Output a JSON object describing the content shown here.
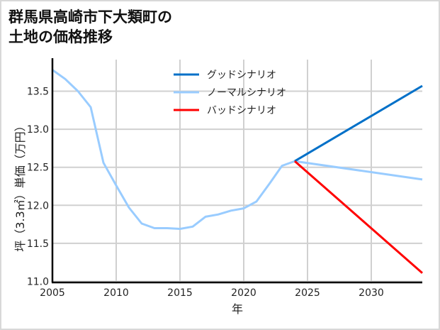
{
  "chart_data": {
    "type": "line",
    "title": "群馬県高崎市下大類町の土地の価格推移",
    "title_lines": [
      "群馬県高崎市下大類町の",
      "土地の価格推移"
    ],
    "xlabel": "年",
    "ylabel": "坪（3.3㎡）単価（万円）",
    "xlim": [
      2005,
      2034
    ],
    "ylim": [
      11.0,
      13.8
    ],
    "x_ticks": [
      2005,
      2010,
      2015,
      2020,
      2025,
      2030
    ],
    "y_ticks": [
      11.0,
      11.5,
      12.0,
      12.5,
      13.0,
      13.5
    ],
    "y_tick_labels": [
      "11.0",
      "11.5",
      "12.0",
      "12.5",
      "13.0",
      "13.5"
    ],
    "grid": true,
    "legend_position": "upper center",
    "series": [
      {
        "name": "グッドシナリオ",
        "color": "#0070c8",
        "x": [
          2024,
          2034
        ],
        "values": [
          12.58,
          13.57
        ]
      },
      {
        "name": "ノーマルシナリオ",
        "color": "#99ccff",
        "x": [
          2005,
          2006,
          2007,
          2008,
          2009,
          2010,
          2011,
          2012,
          2013,
          2014,
          2015,
          2016,
          2017,
          2018,
          2019,
          2020,
          2021,
          2022,
          2023,
          2024,
          2034
        ],
        "values": [
          13.78,
          13.66,
          13.5,
          13.29,
          12.56,
          12.26,
          11.97,
          11.76,
          11.7,
          11.7,
          11.69,
          11.72,
          11.85,
          11.88,
          11.93,
          11.96,
          12.05,
          12.28,
          12.52,
          12.58,
          12.34
        ]
      },
      {
        "name": "バッドシナリオ",
        "color": "#ff0000",
        "x": [
          2024,
          2034
        ],
        "values": [
          12.58,
          11.11
        ]
      }
    ]
  }
}
